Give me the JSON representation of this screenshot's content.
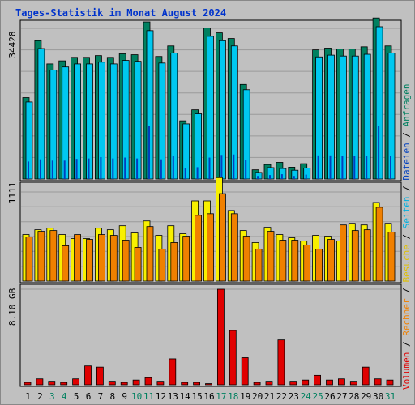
{
  "page": {
    "title": "Tages-Statistik im Monat August 2024"
  },
  "colors": {
    "anfragen": "#008060",
    "dateien": "#0040c0",
    "seiten": "#00c8f0",
    "besuche": "#f8f000",
    "rechner": "#f08000",
    "volumen": "#e00000",
    "background": "#c0c0c0",
    "weekend": "#008060"
  },
  "chart_data": [
    {
      "type": "bar",
      "panel": "top",
      "ytick": "34428",
      "categories": [
        "1",
        "2",
        "3",
        "4",
        "5",
        "6",
        "7",
        "8",
        "9",
        "10",
        "11",
        "12",
        "13",
        "14",
        "15",
        "16",
        "17",
        "18",
        "19",
        "20",
        "21",
        "22",
        "23",
        "24",
        "25",
        "26",
        "27",
        "28",
        "29",
        "30",
        "31"
      ],
      "series": [
        {
          "name": "Anfragen",
          "color": "#008060",
          "values": [
            18600,
            31600,
            26300,
            27000,
            27800,
            27800,
            28200,
            27800,
            28600,
            28400,
            35900,
            28000,
            30400,
            13300,
            15800,
            34500,
            33400,
            32100,
            21600,
            2100,
            3300,
            3800,
            2700,
            3500,
            29500,
            29900,
            29700,
            29700,
            30200,
            36800,
            30400
          ]
        },
        {
          "name": "Seiten",
          "color": "#00c8f0",
          "values": [
            17600,
            29800,
            24900,
            25600,
            26300,
            26300,
            26700,
            26300,
            27100,
            26900,
            33900,
            26500,
            28800,
            12600,
            14900,
            32600,
            31600,
            30400,
            20400,
            1500,
            2600,
            2400,
            2000,
            2500,
            27900,
            28300,
            28100,
            28100,
            28500,
            34800,
            28800
          ]
        },
        {
          "name": "Dateien",
          "color": "#0040c0",
          "values": [
            4000,
            4500,
            4200,
            4200,
            4600,
            4700,
            5000,
            4700,
            4900,
            4700,
            12100,
            4500,
            5200,
            2400,
            2700,
            4900,
            5500,
            5600,
            4300,
            700,
            900,
            1100,
            700,
            1000,
            5400,
            5400,
            5200,
            5200,
            5200,
            12100,
            5200
          ]
        }
      ]
    },
    {
      "type": "bar",
      "panel": "middle",
      "ytick": "1111",
      "categories": [
        "1",
        "2",
        "3",
        "4",
        "5",
        "6",
        "7",
        "8",
        "9",
        "10",
        "11",
        "12",
        "13",
        "14",
        "15",
        "16",
        "17",
        "18",
        "19",
        "20",
        "21",
        "22",
        "23",
        "24",
        "25",
        "26",
        "27",
        "28",
        "29",
        "30",
        "31"
      ],
      "series": [
        {
          "name": "Besuche",
          "color": "#f8f000",
          "values": [
            580,
            640,
            660,
            580,
            530,
            530,
            660,
            640,
            690,
            600,
            750,
            570,
            690,
            590,
            1000,
            1000,
            1290,
            880,
            630,
            480,
            670,
            580,
            540,
            500,
            570,
            560,
            500,
            720,
            700,
            980,
            720
          ]
        },
        {
          "name": "Rechner",
          "color": "#f08000",
          "values": [
            550,
            620,
            630,
            440,
            580,
            520,
            580,
            570,
            510,
            420,
            680,
            400,
            480,
            560,
            820,
            840,
            1090,
            840,
            560,
            400,
            620,
            510,
            510,
            450,
            400,
            520,
            700,
            630,
            640,
            920,
            610
          ]
        }
      ]
    },
    {
      "type": "bar",
      "panel": "bottom",
      "ytick": "8.10 GB",
      "categories": [
        "1",
        "2",
        "3",
        "4",
        "5",
        "6",
        "7",
        "8",
        "9",
        "10",
        "11",
        "12",
        "13",
        "14",
        "15",
        "16",
        "17",
        "18",
        "19",
        "20",
        "21",
        "22",
        "23",
        "24",
        "25",
        "26",
        "27",
        "28",
        "29",
        "30",
        "31"
      ],
      "series": [
        {
          "name": "Volumen",
          "color": "#e00000",
          "values": [
            0.2,
            0.5,
            0.3,
            0.2,
            0.5,
            1.6,
            1.5,
            0.3,
            0.2,
            0.4,
            0.6,
            0.3,
            2.2,
            0.2,
            0.2,
            0.1,
            8.1,
            4.6,
            2.3,
            0.2,
            0.3,
            3.8,
            0.3,
            0.4,
            0.8,
            0.4,
            0.5,
            0.3,
            1.5,
            0.5,
            0.4
          ]
        }
      ]
    }
  ],
  "axis": {
    "days": [
      "1",
      "2",
      "3",
      "4",
      "5",
      "6",
      "7",
      "8",
      "9",
      "10",
      "11",
      "12",
      "13",
      "14",
      "15",
      "16",
      "17",
      "18",
      "19",
      "20",
      "21",
      "22",
      "23",
      "24",
      "25",
      "26",
      "27",
      "28",
      "29",
      "30",
      "31"
    ],
    "weekend": [
      "3",
      "4",
      "10",
      "11",
      "17",
      "18",
      "24",
      "25",
      "31"
    ]
  },
  "legend": {
    "anfragen": "Anfragen",
    "dateien": "Dateien",
    "seiten": "Seiten",
    "besuche": "Besuche",
    "rechner": "Rechner",
    "volumen": "Volumen",
    "sep": " / "
  }
}
